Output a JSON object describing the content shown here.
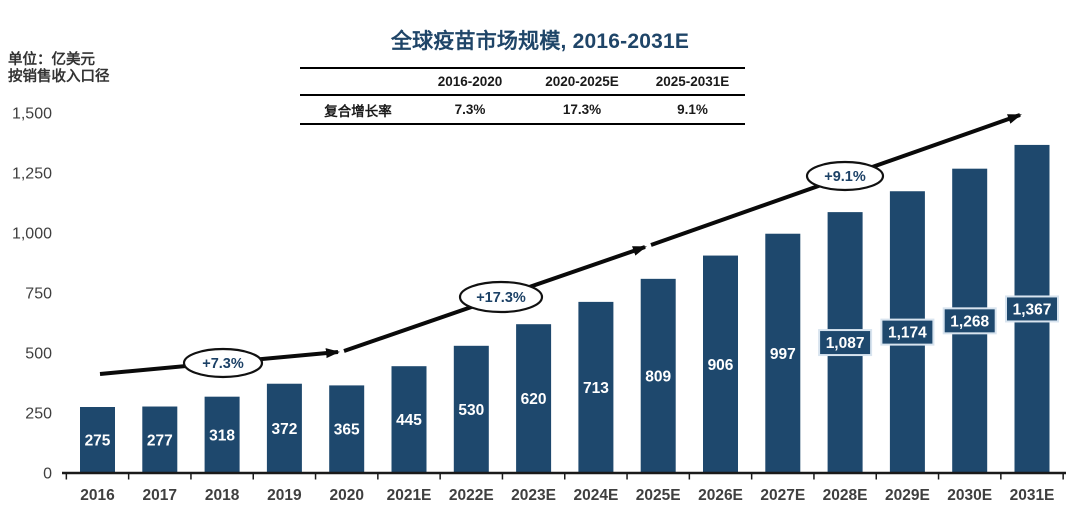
{
  "chart_data": {
    "type": "bar",
    "title": "全球疫苗市场规模, 2016-2031E",
    "unit_note": [
      "单位：亿美元",
      "按销售收入口径"
    ],
    "categories": [
      "2016",
      "2017",
      "2018",
      "2019",
      "2020",
      "2021E",
      "2022E",
      "2023E",
      "2024E",
      "2025E",
      "2026E",
      "2027E",
      "2028E",
      "2029E",
      "2030E",
      "2031E"
    ],
    "values": [
      275,
      277,
      318,
      372,
      365,
      445,
      530,
      620,
      713,
      809,
      906,
      997,
      1087,
      1174,
      1268,
      1367
    ],
    "value_labels": [
      "275",
      "277",
      "318",
      "372",
      "365",
      "445",
      "530",
      "620",
      "713",
      "809",
      "906",
      "997",
      "1,087",
      "1,174",
      "1,268",
      "1,367"
    ],
    "ylim": [
      0,
      1500
    ],
    "ytick_labels": [
      "0",
      "250",
      "500",
      "750",
      "1,000",
      "1,250",
      "1,500"
    ],
    "grid": false,
    "legend": false,
    "bar_color": "#1E486D",
    "growth_annotations": [
      "+7.3%",
      "+17.3%",
      "+9.1%"
    ]
  },
  "cagr_table": {
    "columns": [
      "2016-2020",
      "2020-2025E",
      "2025-2031E"
    ],
    "row_label": "复合增长率",
    "values": [
      "7.3%",
      "17.3%",
      "9.1%"
    ]
  },
  "colors": {
    "bar": "#1E486D",
    "title_text": "#1F4568",
    "axis_text": "#3F3F3F",
    "arrow": "#0A0A0A",
    "badge_border": "#D8E4EF"
  }
}
